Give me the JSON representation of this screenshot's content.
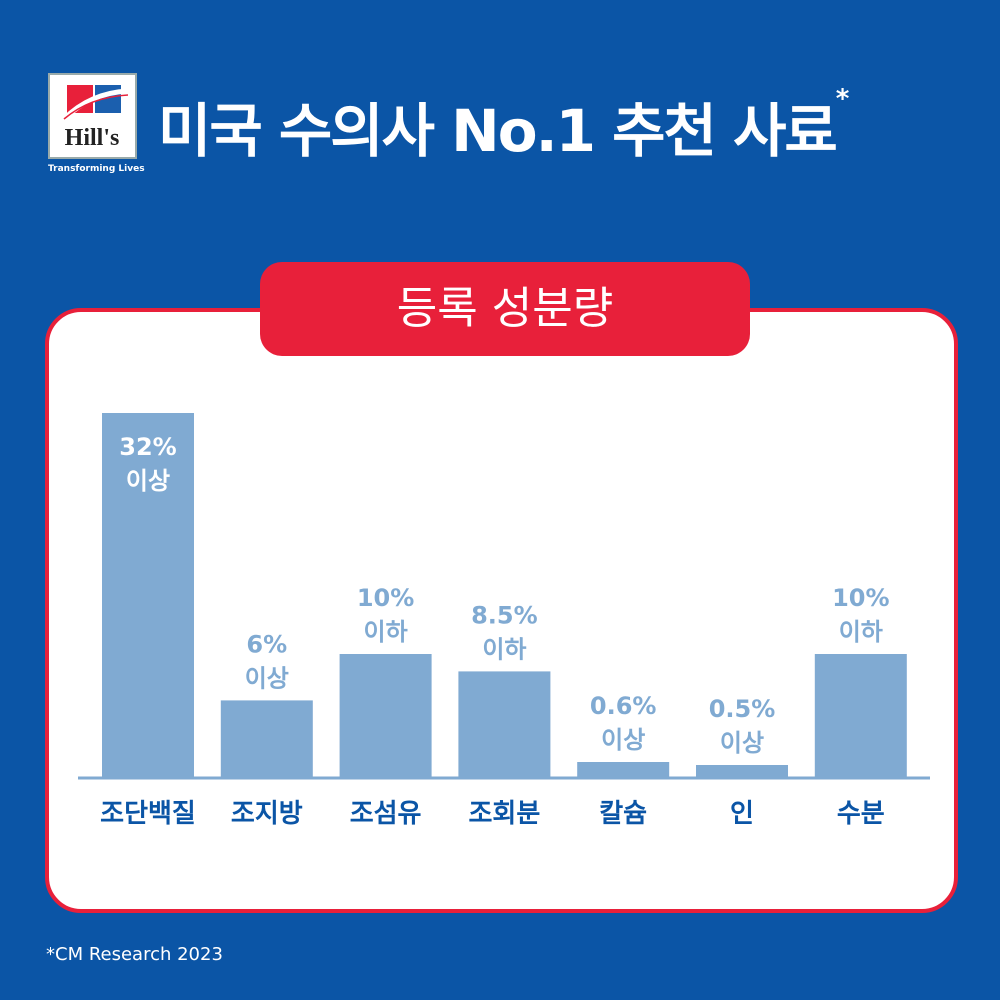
{
  "brand": {
    "logo_text": "Hill's",
    "tagline": "Transforming Lives"
  },
  "header": {
    "title": "미국 수의사 No.1 추천 사료",
    "title_mark": "*"
  },
  "badge": {
    "label": "등록 성분량"
  },
  "footnote": "*CM Research 2023",
  "colors": {
    "background": "#0b55a6",
    "accent": "#e8203a",
    "bar": "#80aad2",
    "label": "#0b55a6"
  },
  "chart_data": {
    "type": "bar",
    "categories": [
      "조단백질",
      "조지방",
      "조섬유",
      "조회분",
      "칼슘",
      "인",
      "수분"
    ],
    "values": [
      32,
      6,
      10,
      8.5,
      0.6,
      0.5,
      10
    ],
    "value_labels": [
      [
        "32%",
        "이상"
      ],
      [
        "6%",
        "이상"
      ],
      [
        "10%",
        "이하"
      ],
      [
        "8.5%",
        "이하"
      ],
      [
        "0.6%",
        "이상"
      ],
      [
        "0.5%",
        "이상"
      ],
      [
        "10%",
        "이하"
      ]
    ],
    "title": "",
    "xlabel": "",
    "ylabel": "",
    "grid": false
  }
}
